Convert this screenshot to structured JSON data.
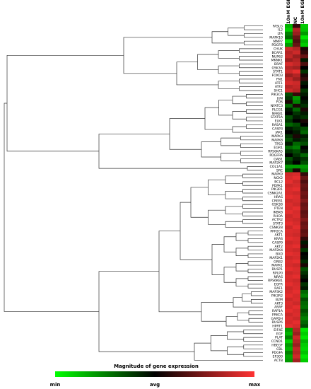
{
  "chart_data": {
    "type": "heatmap",
    "columns": [
      "10nM EGF",
      "NC",
      "10nM EGF"
    ],
    "genes": [
      "FASLG",
      "IL2",
      "LTA",
      "MAPK10",
      "MMP7",
      "PDGFB",
      "CHUK",
      "BCAR1",
      "NUP62",
      "MKNK1",
      "BRAF",
      "GSK3A",
      "STAT1",
      "FOXO3",
      "FN1",
      "ATF1",
      "ATF2",
      "SHC1",
      "PIK3CA",
      "JUN",
      "FOS",
      "NFATC3",
      "PLCG1",
      "NFKB1",
      "STAT5A",
      "ELK1",
      "RASA1",
      "CASP3",
      "JAK1",
      "MAPK3",
      "MAPK8",
      "TP53",
      "EGR1",
      "RPS6KA5",
      "PDGFRA",
      "GAB1",
      "MAP2K7",
      "COL1A1",
      "SRC",
      "MAPK9",
      "NCK2",
      "BCL2",
      "PDPK1",
      "PIK3R1",
      "CSNK2A1",
      "HRAS",
      "CREB1",
      "GSK3B",
      "PTEN",
      "IKBKB",
      "RHOA",
      "ACTR2",
      "STAT3",
      "CSNK2B",
      "PPP2CA",
      "AKT1",
      "KRAS",
      "CASP9",
      "AKT2",
      "MAP2K4",
      "BAD",
      "MAP2K1",
      "GRB2",
      "MAPK1",
      "DUSP1",
      "RPLP0",
      "NRAS",
      "RPS6KB1",
      "EGFR",
      "RAF1",
      "MAP3K2",
      "PIK3R2",
      "B2M",
      "AKT3",
      "ARAF",
      "RAP1A",
      "PRKCA",
      "GAPDH",
      "DUSP6",
      "HPRT1",
      "EIF4E",
      "EGF",
      "PLAT",
      "CCND1",
      "HBEGF",
      "CBL",
      "PDGFA",
      "EP300",
      "ACTB"
    ],
    "values_scale": "0 = min, 0.5 = avg, 1 = max",
    "values": [
      [
        0.15,
        0.6,
        0.1
      ],
      [
        0.1,
        0.85,
        0.12
      ],
      [
        0.25,
        0.8,
        0.2
      ],
      [
        0.3,
        0.7,
        0.05
      ],
      [
        0.08,
        0.65,
        0.15
      ],
      [
        0.2,
        0.7,
        0.1
      ],
      [
        0.9,
        0.85,
        0.55
      ],
      [
        0.85,
        0.9,
        0.6
      ],
      [
        0.88,
        0.8,
        0.7
      ],
      [
        0.8,
        0.85,
        0.45
      ],
      [
        0.92,
        0.88,
        0.65
      ],
      [
        0.85,
        0.82,
        0.5
      ],
      [
        0.9,
        0.95,
        0.4
      ],
      [
        0.8,
        0.85,
        0.55
      ],
      [
        0.88,
        0.8,
        0.6
      ],
      [
        0.92,
        0.9,
        0.45
      ],
      [
        0.85,
        0.88,
        0.5
      ],
      [
        0.9,
        0.85,
        0.4
      ],
      [
        0.35,
        0.6,
        0.45
      ],
      [
        0.4,
        0.2,
        0.5
      ],
      [
        0.55,
        0.25,
        0.45
      ],
      [
        0.3,
        0.55,
        0.4
      ],
      [
        0.45,
        0.3,
        0.55
      ],
      [
        0.5,
        0.4,
        0.45
      ],
      [
        0.35,
        0.45,
        0.4
      ],
      [
        0.4,
        0.5,
        0.55
      ],
      [
        0.3,
        0.35,
        0.5
      ],
      [
        0.45,
        0.4,
        0.35
      ],
      [
        0.5,
        0.45,
        0.3
      ],
      [
        0.4,
        0.55,
        0.45
      ],
      [
        0.35,
        0.45,
        0.4
      ],
      [
        0.45,
        0.3,
        0.35
      ],
      [
        0.3,
        0.25,
        0.5
      ],
      [
        0.4,
        0.35,
        0.45
      ],
      [
        0.5,
        0.4,
        0.3
      ],
      [
        0.35,
        0.45,
        0.4
      ],
      [
        0.4,
        0.5,
        0.35
      ],
      [
        0.2,
        0.2,
        0.2
      ],
      [
        0.3,
        0.55,
        0.25
      ],
      [
        0.9,
        0.92,
        0.6
      ],
      [
        0.92,
        0.95,
        0.7
      ],
      [
        0.95,
        0.9,
        0.65
      ],
      [
        0.9,
        0.92,
        0.7
      ],
      [
        0.93,
        0.95,
        0.68
      ],
      [
        0.92,
        0.9,
        0.72
      ],
      [
        0.95,
        0.93,
        0.7
      ],
      [
        0.9,
        0.92,
        0.75
      ],
      [
        0.93,
        0.9,
        0.7
      ],
      [
        0.92,
        0.95,
        0.72
      ],
      [
        0.95,
        0.92,
        0.68
      ],
      [
        0.9,
        0.93,
        0.7
      ],
      [
        0.92,
        0.9,
        0.75
      ],
      [
        0.95,
        0.92,
        0.7
      ],
      [
        0.9,
        0.95,
        0.72
      ],
      [
        0.93,
        0.92,
        0.68
      ],
      [
        0.92,
        0.9,
        0.7
      ],
      [
        0.95,
        0.93,
        0.6
      ],
      [
        0.9,
        0.92,
        0.45
      ],
      [
        0.93,
        0.95,
        0.55
      ],
      [
        0.92,
        0.9,
        0.4
      ],
      [
        0.95,
        0.93,
        0.5
      ],
      [
        0.9,
        0.92,
        0.48
      ],
      [
        0.93,
        0.95,
        0.42
      ],
      [
        0.92,
        0.9,
        0.55
      ],
      [
        0.95,
        0.93,
        0.35
      ],
      [
        0.9,
        0.92,
        0.4
      ],
      [
        0.93,
        0.95,
        0.45
      ],
      [
        0.92,
        0.9,
        0.5
      ],
      [
        0.95,
        0.92,
        0.4
      ],
      [
        0.9,
        0.93,
        0.45
      ],
      [
        0.92,
        0.95,
        0.3
      ],
      [
        0.95,
        0.92,
        0.25
      ],
      [
        0.9,
        0.93,
        0.35
      ],
      [
        0.93,
        0.9,
        0.3
      ],
      [
        0.92,
        0.95,
        0.28
      ],
      [
        0.95,
        0.92,
        0.35
      ],
      [
        0.9,
        0.93,
        0.3
      ],
      [
        0.93,
        0.9,
        0.25
      ],
      [
        0.92,
        0.95,
        0.3
      ],
      [
        0.95,
        0.92,
        0.35
      ],
      [
        0.2,
        0.85,
        0.05
      ],
      [
        0.15,
        0.8,
        0.1
      ],
      [
        0.25,
        0.9,
        0.05
      ],
      [
        0.1,
        0.85,
        0.15
      ],
      [
        0.2,
        0.8,
        0.1
      ],
      [
        0.15,
        0.88,
        0.08
      ],
      [
        0.25,
        0.85,
        0.12
      ],
      [
        0.18,
        0.9,
        0.05
      ],
      [
        0.2,
        0.82,
        0.1
      ]
    ],
    "colorbar": {
      "title": "Magnitude of gene expression",
      "ticks": [
        "min",
        "avg",
        "max"
      ],
      "colors": {
        "min": "#00ff00",
        "avg": "#000000",
        "max": "#ff3333"
      }
    }
  }
}
